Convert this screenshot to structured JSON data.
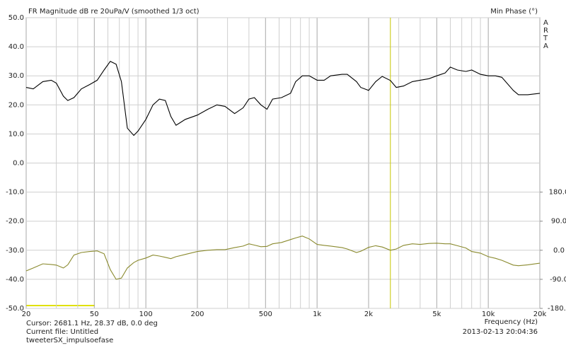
{
  "chart_data": {
    "type": "line",
    "title": "FR Magnitude dB re 20uPa/V (smoothed 1/3 oct)",
    "y2_label": "Min Phase (°)",
    "brand": "ARTA",
    "x_label": "Frequency (Hz)",
    "cursor_text": "Cursor: 2681.1 Hz, 28.37 dB, 0.0 deg",
    "cursor": 2681.1,
    "file_text": "Current file: Untitled",
    "file_name": "tweeterSX_impulsoefase",
    "timestamp": "2013-02-13  20:04:36",
    "x_scale": "log",
    "grid": true,
    "xlim": [
      20,
      20000
    ],
    "xticks": [
      20,
      50,
      100,
      200,
      500,
      {
        "value": 1000,
        "label": "1k"
      },
      {
        "value": 2000,
        "label": "2k"
      },
      {
        "value": 5000,
        "label": "5k"
      },
      {
        "value": 10000,
        "label": "10k"
      },
      {
        "value": 20000,
        "label": "20k"
      }
    ],
    "xgrid": [
      30,
      40,
      60,
      70,
      80,
      90,
      300,
      400,
      600,
      700,
      800,
      900,
      3000,
      4000,
      6000,
      7000,
      8000,
      9000
    ],
    "ylim": [
      -50,
      50
    ],
    "yticks": [
      {
        "value": -50,
        "label": "-50.0"
      },
      {
        "value": -40,
        "label": "-40.0"
      },
      {
        "value": -30,
        "label": "-30.0"
      },
      {
        "value": -20,
        "label": "-20.0"
      },
      {
        "value": -10,
        "label": "-10.0"
      },
      {
        "value": 0,
        "label": "0.0"
      },
      {
        "value": 10,
        "label": "10.0"
      },
      {
        "value": 20,
        "label": "20.0"
      },
      {
        "value": 30,
        "label": "30.0"
      },
      {
        "value": 40,
        "label": "40.0"
      },
      {
        "value": 50,
        "label": "50.0"
      }
    ],
    "y2lim": [
      -180,
      720
    ],
    "y2ticks": [
      {
        "value": -180,
        "label": "-180.0"
      },
      {
        "value": -90,
        "label": "-90.0"
      },
      {
        "value": 0,
        "label": "0.0"
      },
      {
        "value": 90,
        "label": "90.0"
      },
      {
        "value": 180,
        "label": "180.0"
      }
    ],
    "x": [
      20,
      22,
      25,
      28,
      30,
      33,
      35,
      38,
      42,
      47,
      52,
      57,
      62,
      67,
      72,
      78,
      85,
      90,
      100,
      110,
      120,
      130,
      140,
      150,
      170,
      200,
      230,
      260,
      290,
      330,
      370,
      400,
      430,
      470,
      510,
      550,
      620,
      700,
      750,
      820,
      900,
      1000,
      1100,
      1200,
      1400,
      1500,
      1700,
      1800,
      2000,
      2200,
      2400,
      2681,
      2900,
      3200,
      3600,
      4000,
      4500,
      5000,
      5600,
      6000,
      6600,
      7400,
      8000,
      9000,
      10000,
      11000,
      12000,
      14000,
      15000,
      17000,
      20000
    ],
    "series": [
      {
        "name": "Magnitude",
        "color": "#000000",
        "axis": "y",
        "values": [
          26,
          25.5,
          28,
          28.5,
          27.5,
          23,
          21.5,
          22.5,
          25.5,
          27,
          28.5,
          32,
          35,
          34,
          28,
          12,
          9.5,
          11,
          15,
          20,
          22,
          21.5,
          16,
          13,
          15,
          16.5,
          18.5,
          20,
          19.5,
          17,
          19,
          22,
          22.5,
          20,
          18.5,
          22,
          22.5,
          24,
          28,
          30,
          30,
          28.5,
          28.5,
          30,
          30.5,
          30.5,
          28,
          26,
          25,
          28,
          29.8,
          28.4,
          26,
          26.5,
          28,
          28.5,
          29,
          30,
          31,
          33,
          32,
          31.5,
          32,
          30.5,
          30,
          30,
          29.5,
          25,
          23.5,
          23.5,
          24
        ]
      },
      {
        "name": "Phase",
        "color": "#8a8a2e",
        "axis": "y2",
        "values": [
          -64,
          -55,
          -42,
          -44,
          -46,
          -55,
          -45,
          -15,
          -7,
          -4,
          -2,
          -11,
          -60,
          -90,
          -86,
          -55,
          -38,
          -31,
          -24,
          -15,
          -18,
          -22,
          -26,
          -20,
          -13,
          -4,
          0,
          2,
          2,
          8,
          13,
          20,
          16,
          11,
          12,
          20,
          24,
          33,
          38,
          44,
          35,
          18,
          15,
          13,
          8,
          4,
          -7,
          -3,
          9,
          14,
          10,
          0,
          4,
          15,
          20,
          18,
          21,
          22,
          20,
          20,
          14,
          7,
          -4,
          -9,
          -20,
          -25,
          -31,
          -46,
          -48,
          -45,
          -40
        ]
      }
    ]
  }
}
